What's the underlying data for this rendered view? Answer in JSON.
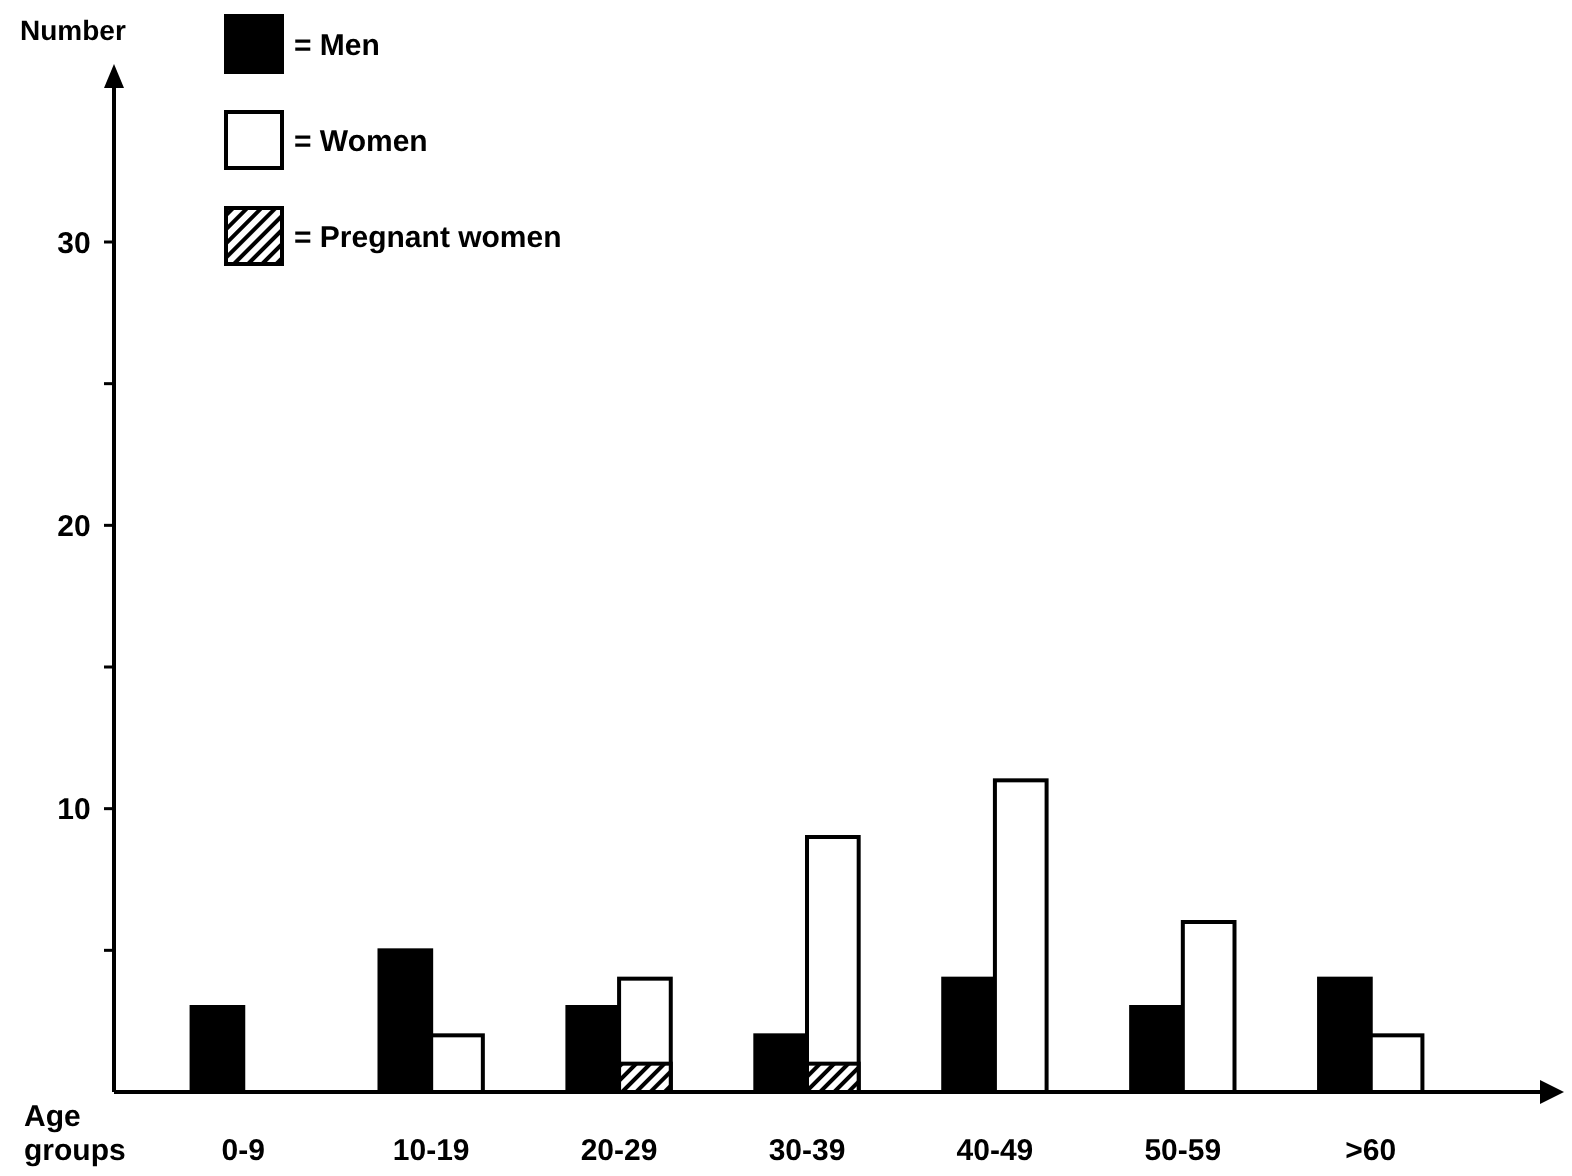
{
  "chart_data": {
    "type": "bar",
    "ylabel": "Number",
    "xlabel": "Age groups",
    "categories": [
      "0-9",
      "10-19",
      "20-29",
      "30-39",
      "40-49",
      "50-59",
      ">60"
    ],
    "series": [
      {
        "name": "= Men",
        "color": "#000000",
        "values": [
          3,
          5,
          3,
          2,
          4,
          3,
          4
        ]
      },
      {
        "name": "= Women",
        "color": "#ffffff",
        "values": [
          0,
          2,
          4,
          9,
          11,
          6,
          2
        ]
      },
      {
        "name": "= Pregnant women",
        "color": "#000000",
        "values": [
          0,
          0,
          1,
          1,
          0,
          0,
          0
        ]
      }
    ],
    "ylim": [
      0,
      36
    ],
    "yticks": [
      {
        "value": 5,
        "label": null
      },
      10,
      {
        "value": 15,
        "label": null
      },
      20,
      {
        "value": 25,
        "label": null
      },
      30
    ],
    "legend": "top left"
  }
}
